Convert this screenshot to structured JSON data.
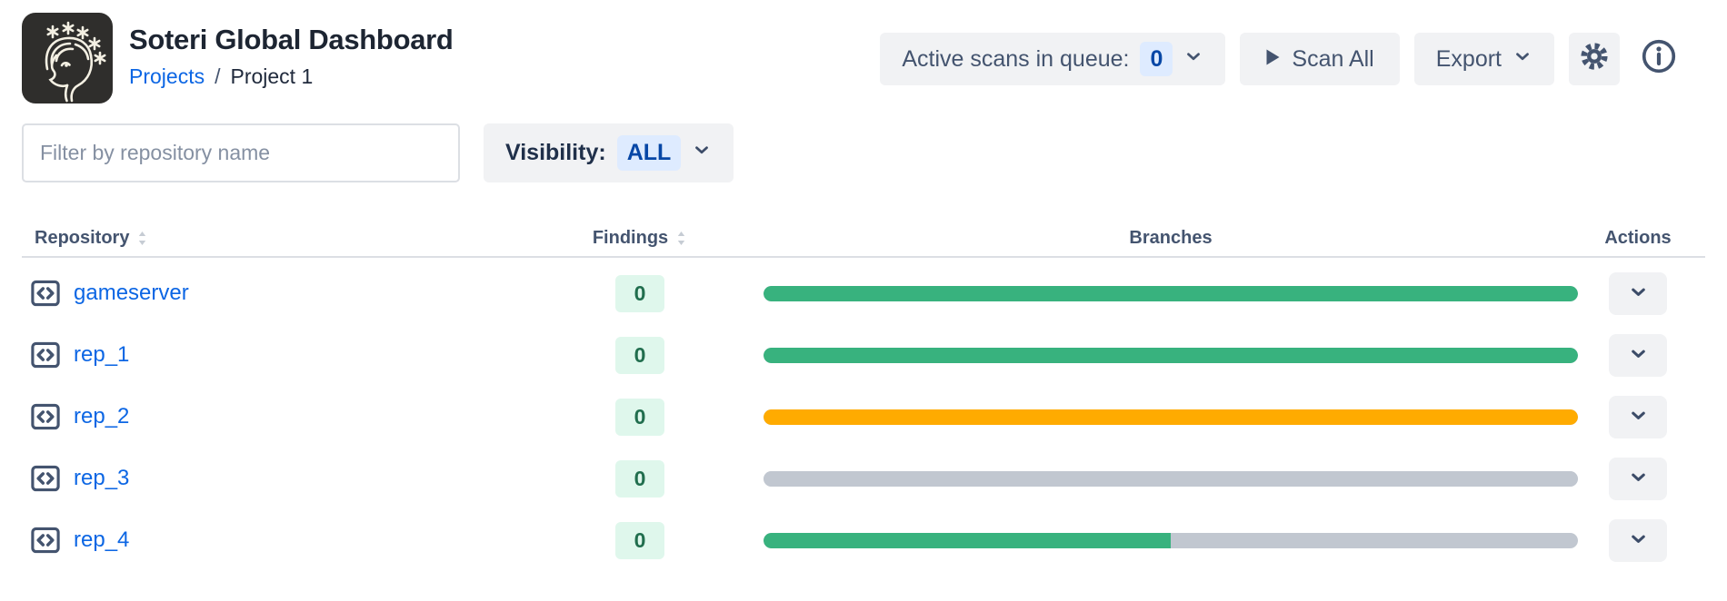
{
  "header": {
    "title": "Soteri Global Dashboard",
    "breadcrumb": {
      "link": "Projects",
      "separator": "/",
      "current": "Project 1"
    },
    "active_scans_label": "Active scans in queue:",
    "active_scans_count": "0",
    "scan_all_label": "Scan All",
    "export_label": "Export"
  },
  "filters": {
    "placeholder": "Filter by repository name",
    "visibility_label": "Visibility:",
    "visibility_value": "ALL"
  },
  "table": {
    "headers": {
      "repository": "Repository",
      "findings": "Findings",
      "branches": "Branches",
      "actions": "Actions"
    },
    "rows": [
      {
        "name": "gameserver",
        "findings": "0",
        "branch_bar": {
          "color": "#38b27e",
          "fill_pct": 100
        }
      },
      {
        "name": "rep_1",
        "findings": "0",
        "branch_bar": {
          "color": "#38b27e",
          "fill_pct": 100
        }
      },
      {
        "name": "rep_2",
        "findings": "0",
        "branch_bar": {
          "color": "#ffab00",
          "fill_pct": 100
        }
      },
      {
        "name": "rep_3",
        "findings": "0",
        "branch_bar": {
          "color": "#c1c7d0",
          "fill_pct": 100
        }
      },
      {
        "name": "rep_4",
        "findings": "0",
        "branch_bar": {
          "color": "#38b27e",
          "fill_pct": 50
        }
      }
    ]
  },
  "icons": {
    "soteri_logo": "line-art face with stars on dark square",
    "play": "triangle-right",
    "chevron_down": "v",
    "gear": "settings cog",
    "info": "circled i",
    "code": "angle brackets in rounded square",
    "sort": "up-down triangles"
  },
  "colors": {
    "link_blue": "#0c66e4",
    "badge_blue_bg": "#deebff",
    "badge_blue_text": "#0747a6",
    "findings_badge_bg": "#dff7ec",
    "findings_badge_text": "#216e4e",
    "bar_green": "#38b27e",
    "bar_amber": "#ffab00",
    "bar_gray": "#c1c7d0",
    "button_bg": "#f1f2f4",
    "text_slate": "#44546f",
    "heading": "#1d2532"
  }
}
